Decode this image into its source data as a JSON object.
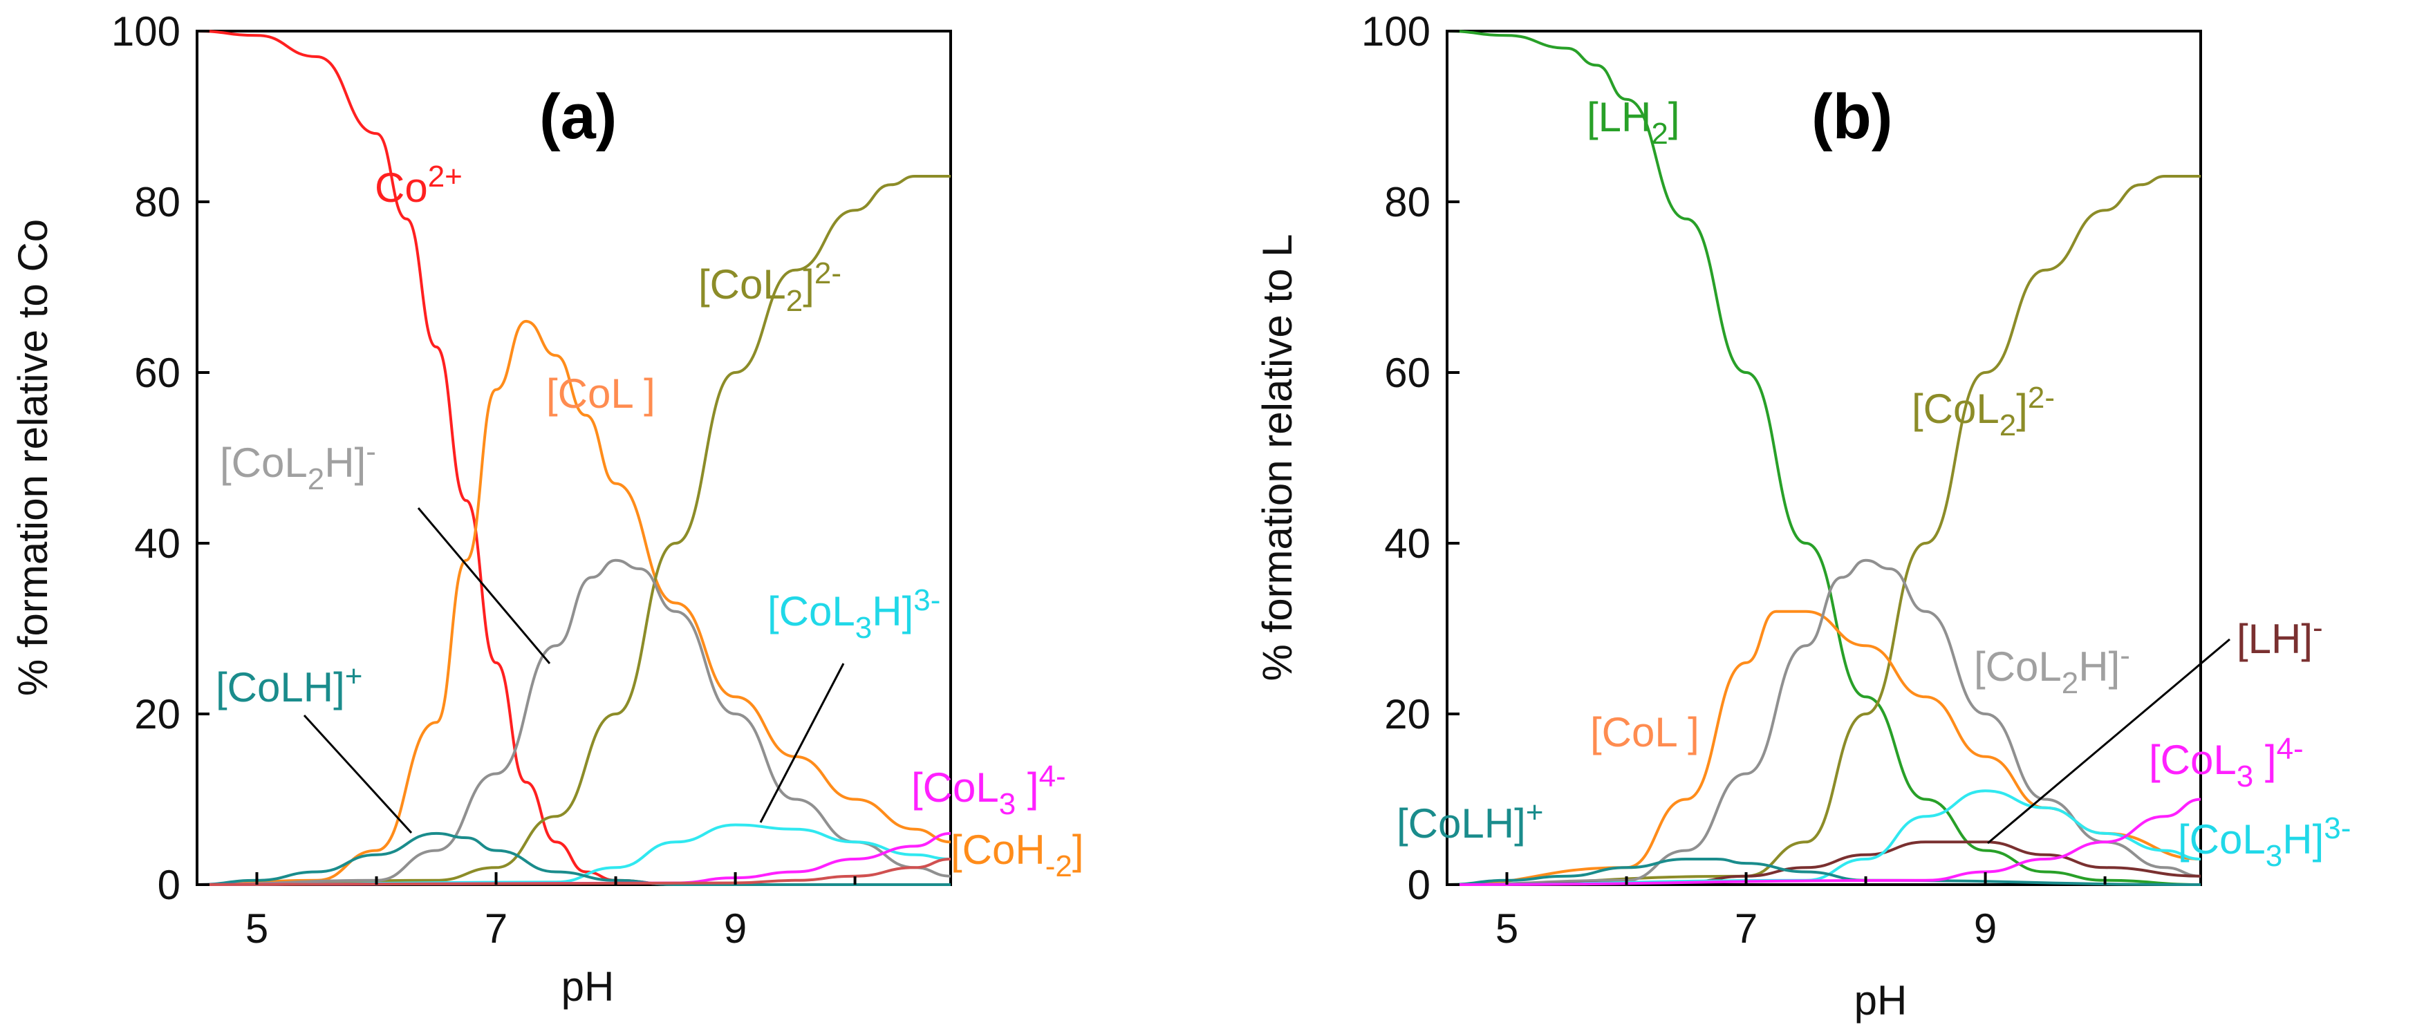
{
  "chart_data": [
    {
      "type": "line",
      "panel": "(a)",
      "xlabel": "pH",
      "ylabel": "% formation relative to Co",
      "xlim": [
        4.5,
        10.8
      ],
      "ylim": [
        0,
        100
      ],
      "xticks": [
        "5",
        "7",
        "9"
      ],
      "yticks": [
        "0",
        "20",
        "40",
        "60",
        "80",
        "100"
      ],
      "series": [
        {
          "name": "Co2+",
          "color": "#ff2020",
          "x": [
            4.5,
            5.0,
            5.5,
            6.0,
            6.25,
            6.5,
            6.75,
            7.0,
            7.25,
            7.5,
            7.75,
            8.0,
            8.5,
            10.8
          ],
          "values": [
            100,
            99.5,
            97,
            88,
            78,
            63,
            45,
            26,
            12,
            5,
            1.5,
            0.5,
            0,
            0
          ]
        },
        {
          "name": "[CoL]",
          "color": "#ff8c1a",
          "x": [
            4.5,
            5.5,
            6.0,
            6.5,
            6.75,
            7.0,
            7.25,
            7.5,
            7.75,
            8.0,
            8.5,
            9.0,
            9.5,
            10.0,
            10.5,
            10.8
          ],
          "values": [
            0,
            0.5,
            4,
            19,
            38,
            58,
            66,
            62,
            55,
            47,
            33,
            22,
            15,
            10,
            6.5,
            5
          ]
        },
        {
          "name": "[CoL2]2-",
          "color": "#8c8c28",
          "x": [
            4.5,
            6.5,
            7.0,
            7.5,
            8.0,
            8.5,
            9.0,
            9.5,
            10.0,
            10.3,
            10.5,
            10.8
          ],
          "values": [
            0,
            0.5,
            2,
            8,
            20,
            40,
            60,
            72,
            79,
            82,
            83,
            83
          ]
        },
        {
          "name": "[CoL2H]-",
          "color": "#909090",
          "x": [
            4.5,
            6.0,
            6.5,
            7.0,
            7.5,
            7.8,
            8.0,
            8.2,
            8.5,
            9.0,
            9.5,
            10.0,
            10.5,
            10.8
          ],
          "values": [
            0,
            0.5,
            4,
            13,
            28,
            36,
            38,
            37,
            32,
            20,
            10,
            5,
            2,
            1
          ]
        },
        {
          "name": "[CoL3H]3-",
          "color": "#30e8f0",
          "x": [
            4.5,
            7.5,
            8.0,
            8.5,
            9.0,
            9.5,
            10.0,
            10.5,
            10.8
          ],
          "values": [
            0,
            0.3,
            2,
            5,
            7,
            6.5,
            5,
            3.5,
            3
          ]
        },
        {
          "name": "[CoLH]+",
          "color": "#1a8c8c",
          "x": [
            4.5,
            5.0,
            5.5,
            6.0,
            6.5,
            6.75,
            7.0,
            7.5,
            8.0,
            8.5,
            10.8
          ],
          "values": [
            0,
            0.5,
            1.5,
            3.5,
            6,
            5.5,
            4,
            1.5,
            0.5,
            0,
            0
          ]
        },
        {
          "name": "[CoL3]4-",
          "color": "#ff20ff",
          "x": [
            4.5,
            8.5,
            9.0,
            9.5,
            10.0,
            10.5,
            10.8
          ],
          "values": [
            0,
            0.2,
            0.8,
            1.5,
            3,
            4.5,
            6
          ]
        },
        {
          "name": "[CoH-2]",
          "color": "#d05050",
          "x": [
            4.5,
            9.0,
            9.5,
            10.0,
            10.5,
            10.8
          ],
          "values": [
            0,
            0.2,
            0.5,
            1,
            2,
            3
          ]
        }
      ],
      "labels": {
        "tag": "(a)",
        "co2": {
          "base": "Co",
          "sup": "2+"
        },
        "col": "[CoL ]",
        "col2": {
          "a": "[CoL",
          "sub": "2",
          "b": "]",
          "sup": "2-"
        },
        "col2h": {
          "a": "[CoL",
          "sub": "2",
          "b": "H]",
          "sup": "-"
        },
        "col3h": {
          "a": "[CoL",
          "sub": "3",
          "b": "H]",
          "sup": "3-"
        },
        "colh": {
          "a": "[CoLH]",
          "sup": "+"
        },
        "col3": {
          "a": "[CoL",
          "sub": "3",
          "b": " ]",
          "sup": "4-"
        },
        "coh2": {
          "a": "[CoH",
          "sub": "-2",
          "b": "]"
        }
      }
    },
    {
      "type": "line",
      "panel": "(b)",
      "xlabel": "pH",
      "ylabel": "% formation relative to  L",
      "xlim": [
        4.5,
        10.8
      ],
      "ylim": [
        0,
        100
      ],
      "xticks": [
        "5",
        "7",
        "9"
      ],
      "yticks": [
        "0",
        "20",
        "40",
        "60",
        "80",
        "100"
      ],
      "series": [
        {
          "name": "[LH2]",
          "color": "#28a028",
          "x": [
            4.5,
            5.0,
            5.5,
            5.75,
            6.0,
            6.5,
            7.0,
            7.5,
            8.0,
            8.5,
            9.0,
            9.5,
            10.0,
            10.8
          ],
          "values": [
            100,
            99.5,
            98,
            96,
            92,
            78,
            60,
            40,
            22,
            10,
            4,
            1.5,
            0.5,
            0
          ]
        },
        {
          "name": "[CoL2]2-",
          "color": "#8c8c28",
          "x": [
            4.5,
            7.0,
            7.5,
            8.0,
            8.5,
            9.0,
            9.5,
            10.0,
            10.3,
            10.5,
            10.8
          ],
          "values": [
            0,
            1,
            5,
            20,
            40,
            60,
            72,
            79,
            82,
            83,
            83
          ]
        },
        {
          "name": "[CoL]",
          "color": "#ff8c1a",
          "x": [
            4.5,
            6.0,
            6.5,
            7.0,
            7.25,
            7.5,
            8.0,
            8.5,
            9.0,
            9.5,
            10.0,
            10.8
          ],
          "values": [
            0,
            2,
            10,
            26,
            32,
            32,
            28,
            22,
            15,
            9,
            6,
            3
          ]
        },
        {
          "name": "[CoL2H]-",
          "color": "#909090",
          "x": [
            4.5,
            6.0,
            6.5,
            7.0,
            7.5,
            7.8,
            8.0,
            8.2,
            8.5,
            9.0,
            9.5,
            10.0,
            10.5,
            10.8
          ],
          "values": [
            0,
            0.5,
            4,
            13,
            28,
            36,
            38,
            37,
            32,
            20,
            10,
            5,
            2,
            1
          ]
        },
        {
          "name": "[LH]-",
          "color": "#7a3030",
          "x": [
            4.5,
            6.5,
            7.0,
            7.5,
            8.0,
            8.5,
            9.0,
            9.5,
            10.0,
            10.8
          ],
          "values": [
            0,
            0.3,
            1,
            2,
            3.5,
            5,
            5,
            3.5,
            2,
            1
          ]
        },
        {
          "name": "[CoL3H]3-",
          "color": "#30e8f0",
          "x": [
            4.5,
            7.5,
            8.0,
            8.5,
            9.0,
            9.5,
            10.0,
            10.5,
            10.8
          ],
          "values": [
            0,
            0.5,
            3,
            8,
            11,
            9,
            6,
            4,
            3
          ]
        },
        {
          "name": "[CoLH]+",
          "color": "#1a8c8c",
          "x": [
            4.5,
            5.0,
            5.5,
            6.0,
            6.5,
            6.75,
            7.0,
            7.5,
            8.0,
            10.8
          ],
          "values": [
            0,
            0.5,
            1,
            2,
            3,
            3,
            2.5,
            1.5,
            0.5,
            0
          ]
        },
        {
          "name": "[CoL3]4-",
          "color": "#ff20ff",
          "x": [
            4.5,
            8.5,
            9.0,
            9.5,
            10.0,
            10.5,
            10.8
          ],
          "values": [
            0,
            0.5,
            1.5,
            3,
            5,
            8,
            10
          ]
        }
      ],
      "labels": {
        "tag": "(b)",
        "lh2": {
          "a": "[LH",
          "sub": "2",
          "b": "]"
        },
        "col2": {
          "a": "[CoL",
          "sub": "2",
          "b": "]",
          "sup": "2-"
        },
        "col2h": {
          "a": "[CoL",
          "sub": "2",
          "b": "H]",
          "sup": "-"
        },
        "lh": {
          "a": "[LH]",
          "sup": "-"
        },
        "col": "[CoL ]",
        "col3": {
          "a": "[CoL",
          "sub": "3",
          "b": " ]",
          "sup": "4-"
        },
        "colh": {
          "a": "[CoLH]",
          "sup": "+"
        },
        "col3h": {
          "a": "[CoL",
          "sub": "3",
          "b": "H]",
          "sup": "3-"
        }
      }
    }
  ]
}
